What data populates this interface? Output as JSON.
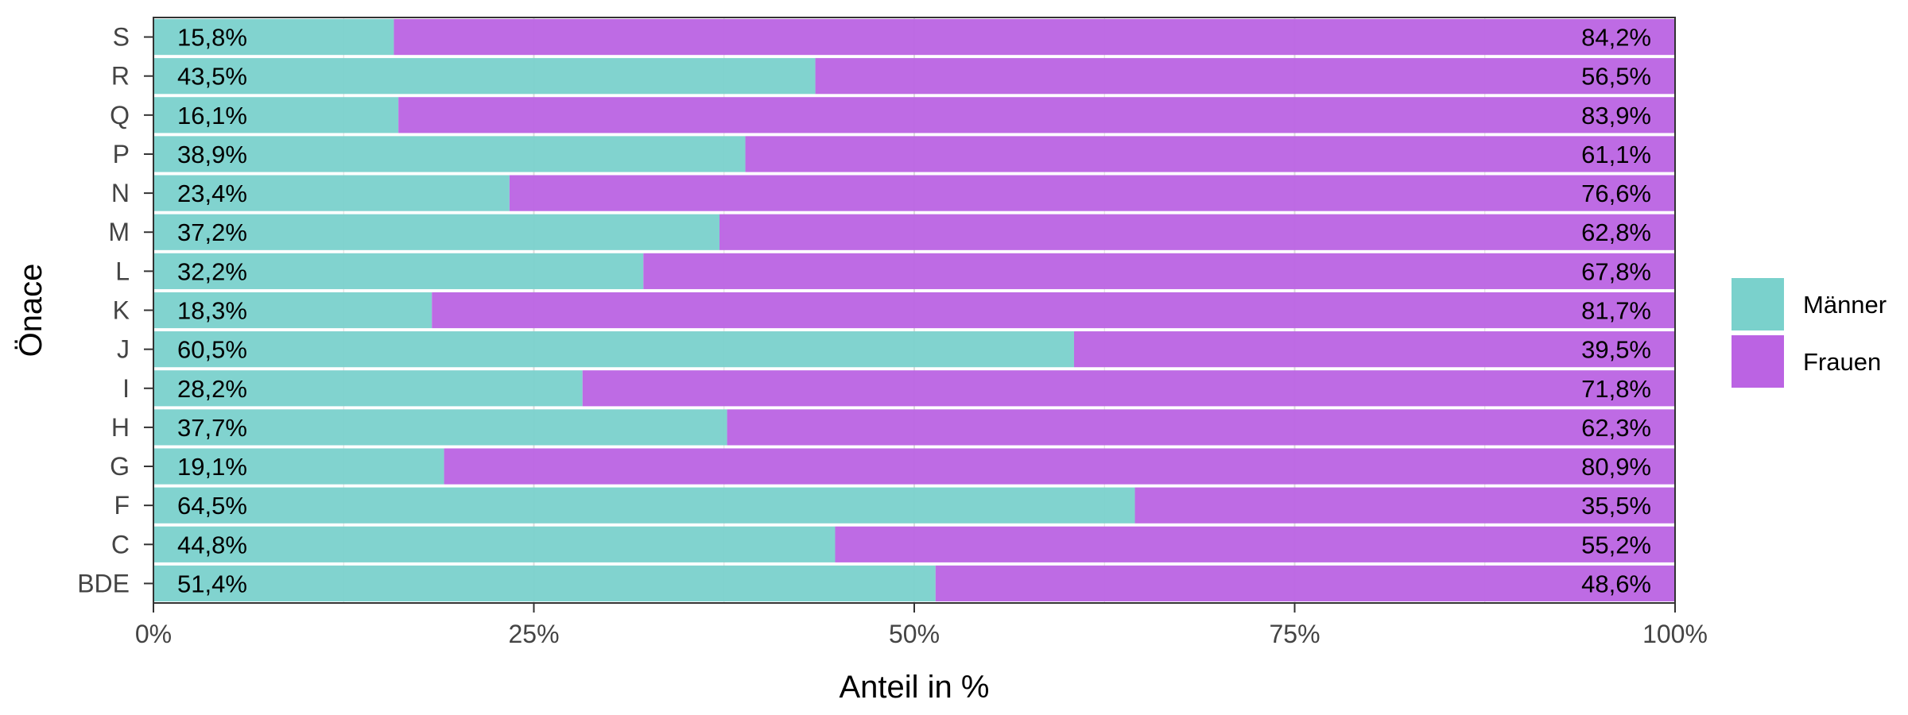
{
  "chart_data": {
    "type": "bar",
    "orientation": "horizontal",
    "stacked": true,
    "percent_stacked": true,
    "categories": [
      "S",
      "R",
      "Q",
      "P",
      "N",
      "M",
      "L",
      "K",
      "J",
      "I",
      "H",
      "G",
      "F",
      "C",
      "BDE"
    ],
    "series": [
      {
        "name": "Männer",
        "color": "#7ad1cc",
        "values": [
          15.8,
          43.5,
          16.1,
          38.9,
          23.4,
          37.2,
          32.2,
          18.3,
          60.5,
          28.2,
          37.7,
          19.1,
          64.5,
          44.8,
          51.4
        ],
        "labels": [
          "15,8%",
          "43,5%",
          "16,1%",
          "38,9%",
          "23,4%",
          "37,2%",
          "32,2%",
          "18,3%",
          "60,5%",
          "28,2%",
          "37,7%",
          "19,1%",
          "64,5%",
          "44,8%",
          "51,4%"
        ]
      },
      {
        "name": "Frauen",
        "color": "#bb63e3",
        "values": [
          84.2,
          56.5,
          83.9,
          61.1,
          76.6,
          62.8,
          67.8,
          81.7,
          39.5,
          71.8,
          62.3,
          80.9,
          35.5,
          55.2,
          48.6
        ],
        "labels": [
          "84,2%",
          "56,5%",
          "83,9%",
          "61,1%",
          "76,6%",
          "62,8%",
          "67,8%",
          "81,7%",
          "39,5%",
          "71,8%",
          "62,3%",
          "80,9%",
          "35,5%",
          "55,2%",
          "48,6%"
        ]
      }
    ],
    "xlabel": "Anteil in %",
    "ylabel": "Önace",
    "xlim": [
      0,
      100
    ],
    "x_ticks": [
      0,
      25,
      50,
      75,
      100
    ],
    "x_tick_labels": [
      "0%",
      "25%",
      "50%",
      "75%",
      "100%"
    ],
    "legend_position": "right",
    "grid": true
  }
}
